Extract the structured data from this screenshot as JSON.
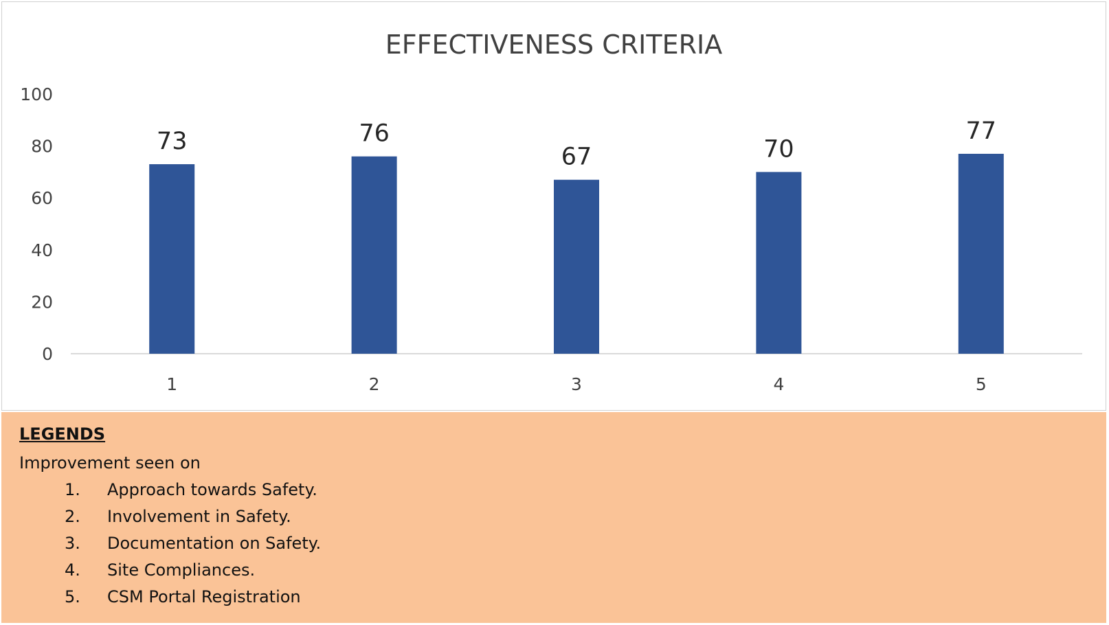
{
  "chart_data": {
    "type": "bar",
    "title": "EFFECTIVENESS CRITERIA",
    "categories": [
      "1",
      "2",
      "3",
      "4",
      "5"
    ],
    "values": [
      73,
      76,
      67,
      70,
      77
    ],
    "ylim": [
      0,
      100
    ],
    "yticks": [
      "0",
      "20",
      "40",
      "60",
      "80",
      "100"
    ],
    "xlabel": "",
    "ylabel": "",
    "grid": false,
    "data_labels": true,
    "bar_color": "#2f5597"
  },
  "legend": {
    "heading": "LEGENDS",
    "intro": "Improvement seen on",
    "items": [
      {
        "num": "1.",
        "label": "Approach towards Safety."
      },
      {
        "num": "2.",
        "label": "Involvement in Safety."
      },
      {
        "num": "3.",
        "label": "Documentation on Safety."
      },
      {
        "num": "4.",
        "label": "Site Compliances."
      },
      {
        "num": "5.",
        "label": "CSM Portal Registration"
      }
    ],
    "background": "#fac397"
  }
}
